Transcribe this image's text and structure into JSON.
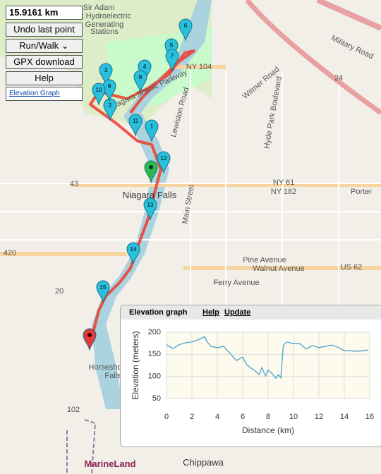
{
  "controls": {
    "distance": "15.9161 km",
    "undo": "Undo last point",
    "mode": "Run/Walk",
    "gpx": "GPX download",
    "help": "Help",
    "elevation_link": "Elevation Graph"
  },
  "map_labels": [
    "Sir Adam",
    "Beck Hydroelectric",
    "Generating",
    "Stations",
    "NY 104",
    "Niagara Scenic Parkway",
    "Lewiston Road",
    "Hyde Park Boulevard",
    "Witmer Road",
    "Military Road",
    "43",
    "Niagara Falls",
    "NY 61",
    "NY 182",
    "Porter",
    "420",
    "Pine Avenue",
    "Walnut Avenue",
    "US 62",
    "Ferry Avenue",
    "20",
    "Main Street",
    "Horseshoe",
    "Falls",
    "102",
    "MarineLand",
    "Chippawa",
    "24"
  ],
  "markers": [
    "1",
    "2",
    "3",
    "4",
    "5",
    "6",
    "7",
    "8",
    "9",
    "10",
    "11",
    "12",
    "13",
    "14",
    "15"
  ],
  "elevation_panel": {
    "title": "Elevation graph",
    "help": "Help",
    "update": "Update"
  },
  "chart_data": {
    "type": "line",
    "x_label": "Distance (km)",
    "y_label": "Elevation (meters)",
    "color": "#4aa3c8",
    "x": [
      0,
      0.5,
      1,
      1.5,
      2,
      2.5,
      3,
      3.2,
      3.5,
      4,
      4.5,
      5,
      5.5,
      6,
      6.3,
      6.6,
      7,
      7.3,
      7.5,
      7.8,
      8,
      8.3,
      8.6,
      8.8,
      9,
      9.2,
      9.5,
      10,
      10.5,
      11,
      11.5,
      12,
      12.5,
      13,
      13.5,
      14,
      14.5,
      15,
      15.5,
      15.9
    ],
    "values": [
      172,
      163,
      172,
      176,
      178,
      183,
      190,
      178,
      168,
      165,
      168,
      152,
      136,
      144,
      127,
      120,
      112,
      104,
      120,
      101,
      114,
      107,
      96,
      104,
      97,
      171,
      178,
      174,
      174,
      162,
      170,
      165,
      168,
      171,
      166,
      158,
      158,
      157,
      158,
      160
    ],
    "xlim": [
      0,
      16
    ],
    "ylim": [
      50,
      200
    ],
    "xticks": [
      0,
      2,
      4,
      6,
      8,
      10,
      12,
      14,
      16
    ],
    "yticks": [
      50,
      100,
      150,
      200
    ],
    "grid": true
  }
}
